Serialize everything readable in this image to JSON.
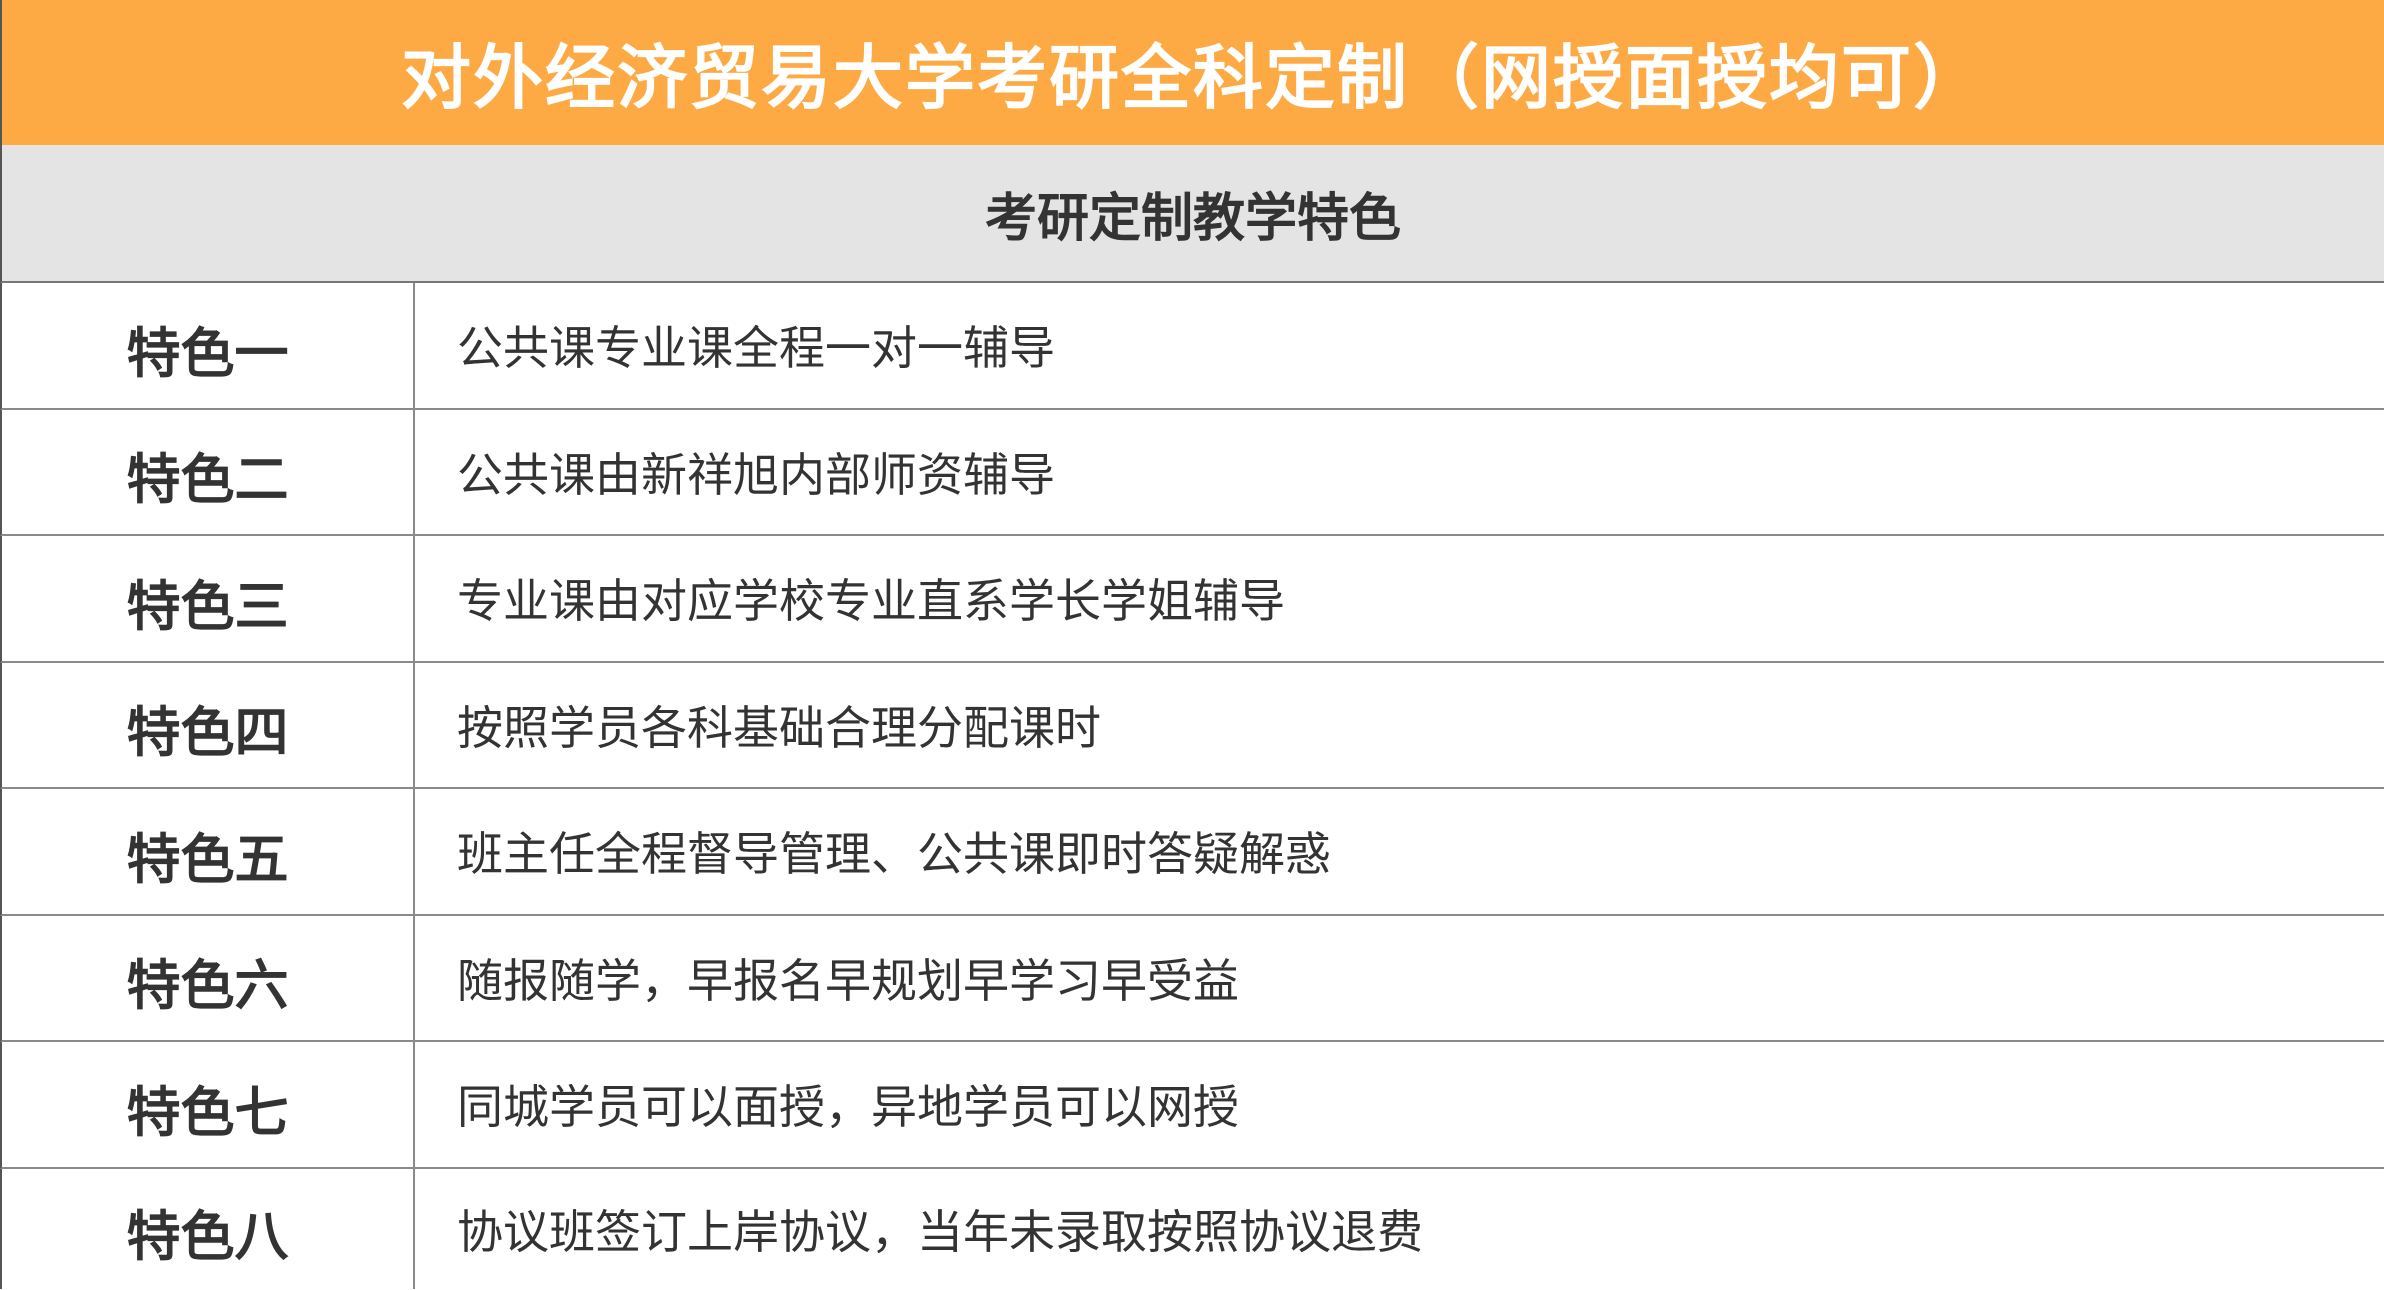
{
  "title": "对外经济贸易大学考研全科定制（网授面授均可）",
  "subtitle": "考研定制教学特色",
  "colors": {
    "header_bg": "#fdaa45",
    "subheader_bg": "#e4e4e4"
  },
  "rows": [
    {
      "label": "特色一",
      "content": "公共课专业课全程一对一辅导"
    },
    {
      "label": "特色二",
      "content": "公共课由新祥旭内部师资辅导"
    },
    {
      "label": "特色三",
      "content": "专业课由对应学校专业直系学长学姐辅导"
    },
    {
      "label": "特色四",
      "content": "按照学员各科基础合理分配课时"
    },
    {
      "label": "特色五",
      "content": "班主任全程督导管理、公共课即时答疑解惑"
    },
    {
      "label": "特色六",
      "content": "随报随学，早报名早规划早学习早受益"
    },
    {
      "label": "特色七",
      "content": "同城学员可以面授，异地学员可以网授"
    },
    {
      "label": "特色八",
      "content": "协议班签订上岸协议，当年未录取按照协议退费"
    }
  ]
}
